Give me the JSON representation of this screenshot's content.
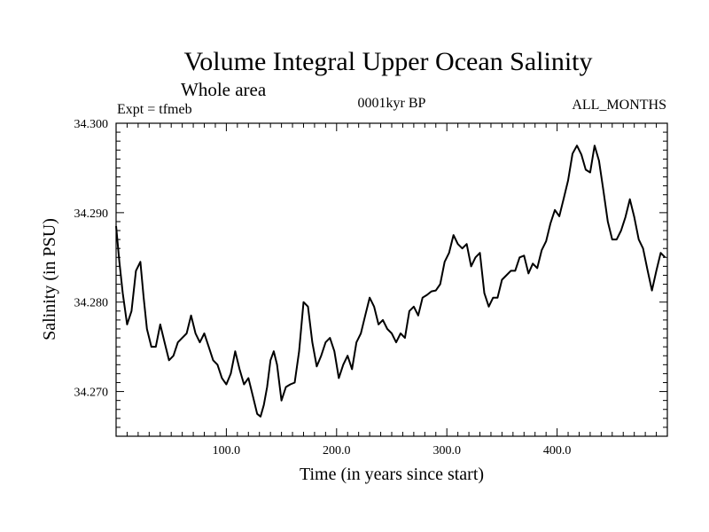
{
  "chart_data": {
    "type": "line",
    "title": "Volume Integral Upper Ocean Salinity",
    "subtitle": "Whole area",
    "header_left": "Expt = tfmeb",
    "header_center": "0001kyr BP",
    "header_right": "ALL_MONTHS",
    "xlabel": "Time (in years since start)",
    "ylabel": "Salinity (in PSU)",
    "xlim": [
      0,
      500
    ],
    "ylim": [
      34.265,
      34.3
    ],
    "xticks": [
      100,
      200,
      300,
      400
    ],
    "xtick_labels": [
      "100.0",
      "200.0",
      "300.0",
      "400.0"
    ],
    "yticks": [
      34.27,
      34.28,
      34.29,
      34.3
    ],
    "ytick_labels": [
      "34.270",
      "34.280",
      "34.290",
      "34.300"
    ],
    "grid": false,
    "colors": {
      "line": "#000000",
      "axes": "#000000",
      "background": "#ffffff"
    },
    "series": [
      {
        "x": [
          0,
          3,
          6,
          10,
          14,
          18,
          22,
          25,
          28,
          32,
          36,
          40,
          44,
          48,
          52,
          56,
          60,
          64,
          68,
          72,
          76,
          80,
          84,
          88,
          92,
          96,
          100,
          104,
          108,
          112,
          116,
          120,
          124,
          128,
          131,
          134,
          137,
          140,
          143,
          146,
          150,
          154,
          158,
          162,
          166,
          170,
          174,
          178,
          182,
          186,
          190,
          194,
          198,
          202,
          206,
          210,
          214,
          218,
          222,
          226,
          230,
          234,
          238,
          242,
          246,
          250,
          254,
          258,
          262,
          266,
          270,
          274,
          278,
          282,
          286,
          290,
          294,
          298,
          302,
          306,
          310,
          314,
          318,
          322,
          326,
          330,
          334,
          338,
          342,
          346,
          350,
          354,
          358,
          362,
          366,
          370,
          374,
          378,
          382,
          386,
          390,
          394,
          398,
          402,
          406,
          410,
          414,
          418,
          422,
          426,
          430,
          434,
          438,
          442,
          446,
          450,
          454,
          458,
          462,
          466,
          470,
          474,
          478,
          482,
          486,
          490,
          494,
          498
        ],
        "values": [
          34.2885,
          34.2845,
          34.281,
          34.2775,
          34.279,
          34.2835,
          34.2845,
          34.2805,
          34.277,
          34.275,
          34.275,
          34.2775,
          34.2755,
          34.2735,
          34.274,
          34.2755,
          34.276,
          34.2765,
          34.2785,
          34.2765,
          34.2755,
          34.2765,
          34.275,
          34.2735,
          34.273,
          34.2715,
          34.2708,
          34.272,
          34.2745,
          34.2725,
          34.2708,
          34.2715,
          34.2695,
          34.2675,
          34.2672,
          34.2685,
          34.2705,
          34.2735,
          34.2745,
          34.273,
          34.269,
          34.2705,
          34.2708,
          34.271,
          34.2745,
          34.28,
          34.2795,
          34.2755,
          34.2728,
          34.274,
          34.2755,
          34.276,
          34.2745,
          34.2715,
          34.273,
          34.274,
          34.2725,
          34.2755,
          34.2765,
          34.2785,
          34.2805,
          34.2795,
          34.2775,
          34.278,
          34.277,
          34.2765,
          34.2755,
          34.2765,
          34.276,
          34.279,
          34.2795,
          34.2785,
          34.2805,
          34.2808,
          34.2812,
          34.2813,
          34.282,
          34.2845,
          34.2855,
          34.2875,
          34.2865,
          34.286,
          34.2865,
          34.284,
          34.285,
          34.2855,
          34.281,
          34.2795,
          34.2805,
          34.2805,
          34.2825,
          34.283,
          34.2835,
          34.2835,
          34.285,
          34.2852,
          34.2832,
          34.2843,
          34.2838,
          34.2858,
          34.2868,
          34.2888,
          34.2903,
          34.2896,
          34.2916,
          34.2936,
          34.2966,
          34.2975,
          34.2965,
          34.2948,
          34.2945,
          34.2975,
          34.2958,
          34.2925,
          34.289,
          34.287,
          34.287,
          34.288,
          34.2895,
          34.2915,
          34.2895,
          34.287,
          34.286,
          34.2836,
          34.2813,
          34.2835,
          34.2855,
          34.285
        ]
      }
    ]
  }
}
